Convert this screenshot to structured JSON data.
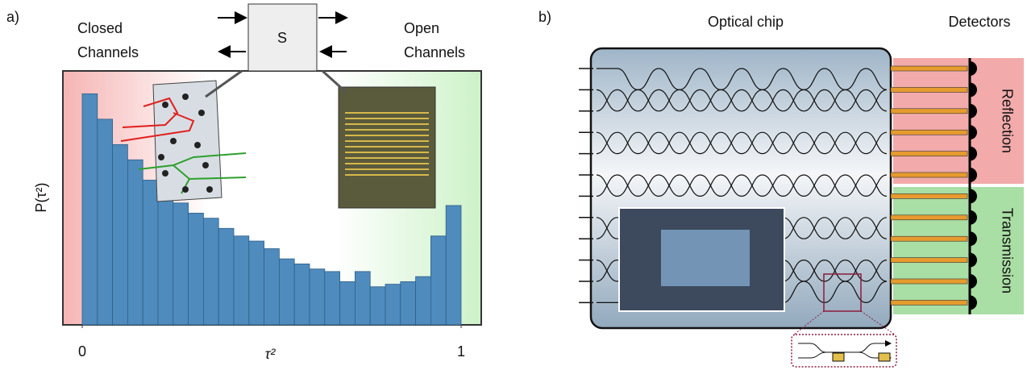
{
  "chart_data": {
    "type": "histogram",
    "x_label": "τ²",
    "y_label": "P(τ²)",
    "bins": [
      0,
      0.04,
      0.08,
      0.12,
      0.16,
      0.2,
      0.24,
      0.28,
      0.32,
      0.36,
      0.4,
      0.44,
      0.48,
      0.52,
      0.56,
      0.6,
      0.64,
      0.68,
      0.72,
      0.76,
      0.8,
      0.84,
      0.88,
      0.92,
      0.96,
      1
    ],
    "values": [
      0.91,
      0.81,
      0.71,
      0.65,
      0.57,
      0.52,
      0.48,
      0.44,
      0.42,
      0.38,
      0.35,
      0.33,
      0.3,
      0.26,
      0.24,
      0.22,
      0.21,
      0.17,
      0.21,
      0.15,
      0.16,
      0.17,
      0.19,
      0.35,
      0.47
    ],
    "color": "#4f8bbd",
    "xlim": [
      0,
      1
    ],
    "xticks": [
      0,
      1
    ],
    "ylim": [
      0,
      1
    ],
    "annotations": [
      {
        "lines": [
          "Closed",
          "Channels"
        ],
        "color": "#e0201c"
      },
      {
        "lines": [
          "Open",
          "Channels"
        ],
        "color": "#2ca02c"
      }
    ]
  },
  "panel_a": {
    "label": "a)",
    "matrix": "S"
  },
  "panel_b": {
    "label": "b)",
    "chip_label": "Optical chip",
    "detectors_label": "Detectors",
    "reflection_label": "Reflection",
    "transmission_label": "Transmission"
  }
}
